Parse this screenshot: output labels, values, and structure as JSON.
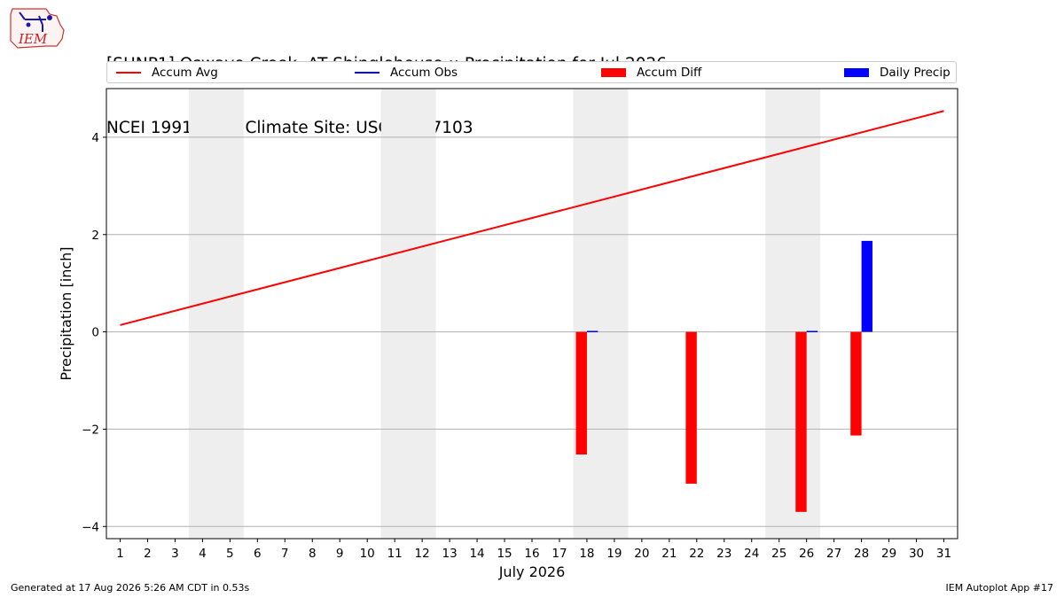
{
  "logo": {
    "text": "IEM"
  },
  "title_line1": "[SHNP1] Oswayo Creek  AT Shinglehouse :: Precipitation for Jul 2026",
  "title_line2": "NCEI 1991-2020 Climate Site: USC00367103",
  "footer_left": "Generated at 17 Aug 2026 5:26 AM CDT in 0.53s",
  "footer_right": "IEM Autoplot App #17",
  "colors": {
    "accum_avg": "#ff0000",
    "accum_obs": "#0000ff",
    "accum_diff": "#ff0000",
    "daily_precip": "#0000ff",
    "weekend_shade": "#eeeeee",
    "grid": "#b0b0b0"
  },
  "chart_data": {
    "type": "bar",
    "xlabel": "July 2026",
    "ylabel": "Precipitation [inch]",
    "xlim": [
      0.5,
      31.5
    ],
    "ylim": [
      -4.25,
      5.0
    ],
    "grid": "horizontal",
    "legend_placement": "top",
    "x_ticks": [
      1,
      2,
      3,
      4,
      5,
      6,
      7,
      8,
      9,
      10,
      11,
      12,
      13,
      14,
      15,
      16,
      17,
      18,
      19,
      20,
      21,
      22,
      23,
      24,
      25,
      26,
      27,
      28,
      29,
      30,
      31
    ],
    "x_tick_labels": [
      "1",
      "2",
      "3",
      "4",
      "5",
      "6",
      "7",
      "8",
      "9",
      "10",
      "11",
      "12",
      "13",
      "14",
      "15",
      "16",
      "17",
      "18",
      "19",
      "20",
      "21",
      "22",
      "23",
      "24",
      "25",
      "26",
      "27",
      "28",
      "29",
      "30",
      "31"
    ],
    "y_ticks": [
      -4,
      -2,
      0,
      2,
      4
    ],
    "y_tick_labels": [
      "−4",
      "−2",
      "0",
      "2",
      "4"
    ],
    "weekend_days": [
      [
        4,
        5
      ],
      [
        11,
        12
      ],
      [
        18,
        19
      ],
      [
        25,
        26
      ]
    ],
    "legend": [
      {
        "key": "accum_avg",
        "label": "Accum Avg",
        "kind": "line"
      },
      {
        "key": "accum_obs",
        "label": "Accum Obs",
        "kind": "line"
      },
      {
        "key": "accum_diff",
        "label": "Accum Diff",
        "kind": "rect"
      },
      {
        "key": "daily_precip",
        "label": "Daily Precip",
        "kind": "rect"
      }
    ],
    "accum_avg": {
      "x": [
        1,
        31
      ],
      "values": [
        0.14,
        4.54
      ]
    },
    "accum_diff": {
      "x": [
        18,
        22,
        26,
        28
      ],
      "values": [
        -2.52,
        -3.12,
        -3.7,
        -2.13
      ]
    },
    "daily_precip": {
      "x": [
        18,
        26,
        28
      ],
      "values": [
        0.02,
        0.02,
        1.87
      ]
    }
  }
}
